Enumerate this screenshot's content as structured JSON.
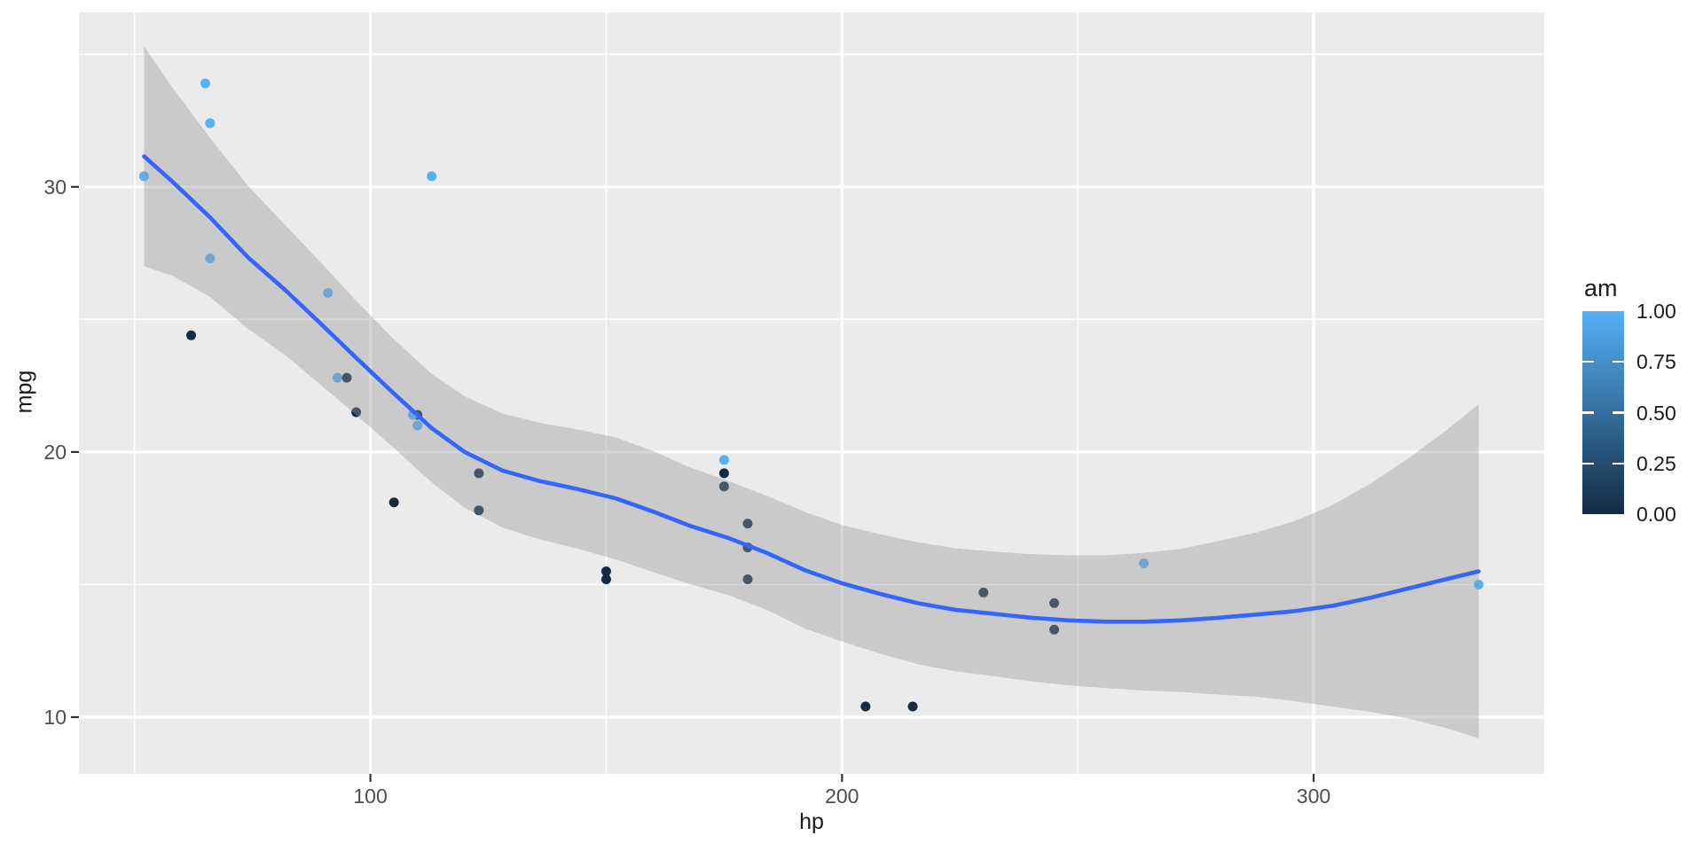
{
  "page": {
    "background": "#ffffff"
  },
  "chart_data": {
    "type": "scatter",
    "title": "",
    "xlabel": "hp",
    "ylabel": "mpg",
    "x_range": [
      38.2,
      348.9
    ],
    "y_range": [
      7.86,
      36.58
    ],
    "x_major_ticks": [
      100,
      200,
      300
    ],
    "x_tick_labels": [
      "100",
      "200",
      "300"
    ],
    "x_minor_ticks": [
      50,
      150,
      250
    ],
    "y_major_ticks": [
      10,
      20,
      30
    ],
    "y_tick_labels": [
      "10",
      "20",
      "30"
    ],
    "y_minor_ticks": [
      15,
      25,
      35
    ],
    "grid": "on",
    "legend_position": "right",
    "panel_background": "#EBEBEB",
    "grid_major_color": "#FFFFFF",
    "grid_minor_color": "#FFFFFF",
    "tick_mark_color": "#333333",
    "tick_label_color": "#4D4D4D",
    "axis_title_color": "#1A1A1A",
    "point_colors": {
      "am0": "#132B43",
      "am1": "#56B1F7"
    },
    "points": [
      {
        "hp": 110,
        "mpg": 21.0,
        "am": 1
      },
      {
        "hp": 110,
        "mpg": 21.0,
        "am": 1
      },
      {
        "hp": 93,
        "mpg": 22.8,
        "am": 1
      },
      {
        "hp": 110,
        "mpg": 21.4,
        "am": 0
      },
      {
        "hp": 175,
        "mpg": 18.7,
        "am": 0
      },
      {
        "hp": 105,
        "mpg": 18.1,
        "am": 0
      },
      {
        "hp": 245,
        "mpg": 14.3,
        "am": 0
      },
      {
        "hp": 62,
        "mpg": 24.4,
        "am": 0
      },
      {
        "hp": 95,
        "mpg": 22.8,
        "am": 0
      },
      {
        "hp": 123,
        "mpg": 19.2,
        "am": 0
      },
      {
        "hp": 123,
        "mpg": 17.8,
        "am": 0
      },
      {
        "hp": 180,
        "mpg": 16.4,
        "am": 0
      },
      {
        "hp": 180,
        "mpg": 17.3,
        "am": 0
      },
      {
        "hp": 180,
        "mpg": 15.2,
        "am": 0
      },
      {
        "hp": 205,
        "mpg": 10.4,
        "am": 0
      },
      {
        "hp": 215,
        "mpg": 10.4,
        "am": 0
      },
      {
        "hp": 230,
        "mpg": 14.7,
        "am": 0
      },
      {
        "hp": 66,
        "mpg": 32.4,
        "am": 1
      },
      {
        "hp": 52,
        "mpg": 30.4,
        "am": 1
      },
      {
        "hp": 65,
        "mpg": 33.9,
        "am": 1
      },
      {
        "hp": 97,
        "mpg": 21.5,
        "am": 0
      },
      {
        "hp": 150,
        "mpg": 15.5,
        "am": 0
      },
      {
        "hp": 150,
        "mpg": 15.2,
        "am": 0
      },
      {
        "hp": 245,
        "mpg": 13.3,
        "am": 0
      },
      {
        "hp": 175,
        "mpg": 19.2,
        "am": 0
      },
      {
        "hp": 66,
        "mpg": 27.3,
        "am": 1
      },
      {
        "hp": 91,
        "mpg": 26.0,
        "am": 1
      },
      {
        "hp": 113,
        "mpg": 30.4,
        "am": 1
      },
      {
        "hp": 264,
        "mpg": 15.8,
        "am": 1
      },
      {
        "hp": 175,
        "mpg": 19.7,
        "am": 1
      },
      {
        "hp": 335,
        "mpg": 15.0,
        "am": 1
      },
      {
        "hp": 109,
        "mpg": 21.4,
        "am": 1
      }
    ],
    "smooth": {
      "line_color": "#3366FF",
      "ribbon_color": "rgba(153,153,153,0.4)",
      "curve_hp": [
        52,
        58,
        66,
        74,
        82,
        90,
        97,
        105,
        113,
        120,
        128,
        136,
        144,
        152,
        160,
        168,
        176,
        184,
        192,
        200,
        208,
        216,
        224,
        232,
        240,
        248,
        256,
        264,
        272,
        280,
        288,
        296,
        304,
        312,
        320,
        328,
        335
      ],
      "curve_fit": [
        31.15,
        30.2,
        28.85,
        27.35,
        26.1,
        24.75,
        23.55,
        22.2,
        20.9,
        20.0,
        19.3,
        18.9,
        18.6,
        18.25,
        17.75,
        17.2,
        16.75,
        16.2,
        15.55,
        15.05,
        14.65,
        14.3,
        14.05,
        13.9,
        13.75,
        13.65,
        13.6,
        13.6,
        13.65,
        13.75,
        13.87,
        14.0,
        14.2,
        14.5,
        14.85,
        15.2,
        15.5
      ],
      "curve_lwr": [
        27.0,
        26.65,
        25.85,
        24.65,
        23.65,
        22.45,
        21.4,
        20.15,
        18.85,
        17.9,
        17.15,
        16.7,
        16.35,
        15.95,
        15.47,
        15.0,
        14.6,
        14.05,
        13.35,
        12.85,
        12.4,
        12.0,
        11.73,
        11.55,
        11.35,
        11.2,
        11.1,
        11.0,
        10.95,
        10.85,
        10.77,
        10.6,
        10.4,
        10.2,
        9.95,
        9.6,
        9.2
      ],
      "curve_upr": [
        35.3,
        33.75,
        31.85,
        30.05,
        28.55,
        27.05,
        25.7,
        24.25,
        22.95,
        22.1,
        21.45,
        21.1,
        20.85,
        20.55,
        20.03,
        19.4,
        18.9,
        18.35,
        17.75,
        17.25,
        16.9,
        16.6,
        16.37,
        16.25,
        16.15,
        16.1,
        16.1,
        16.2,
        16.35,
        16.65,
        16.97,
        17.4,
        18.0,
        18.8,
        19.75,
        20.8,
        21.8
      ]
    },
    "legend": {
      "title": "am",
      "labels": [
        "1.00",
        "0.75",
        "0.50",
        "0.25",
        "0.00"
      ],
      "values": [
        1.0,
        0.75,
        0.5,
        0.25,
        0.0
      ],
      "gradient_top": "#56B1F7",
      "gradient_bottom": "#132B43"
    }
  }
}
